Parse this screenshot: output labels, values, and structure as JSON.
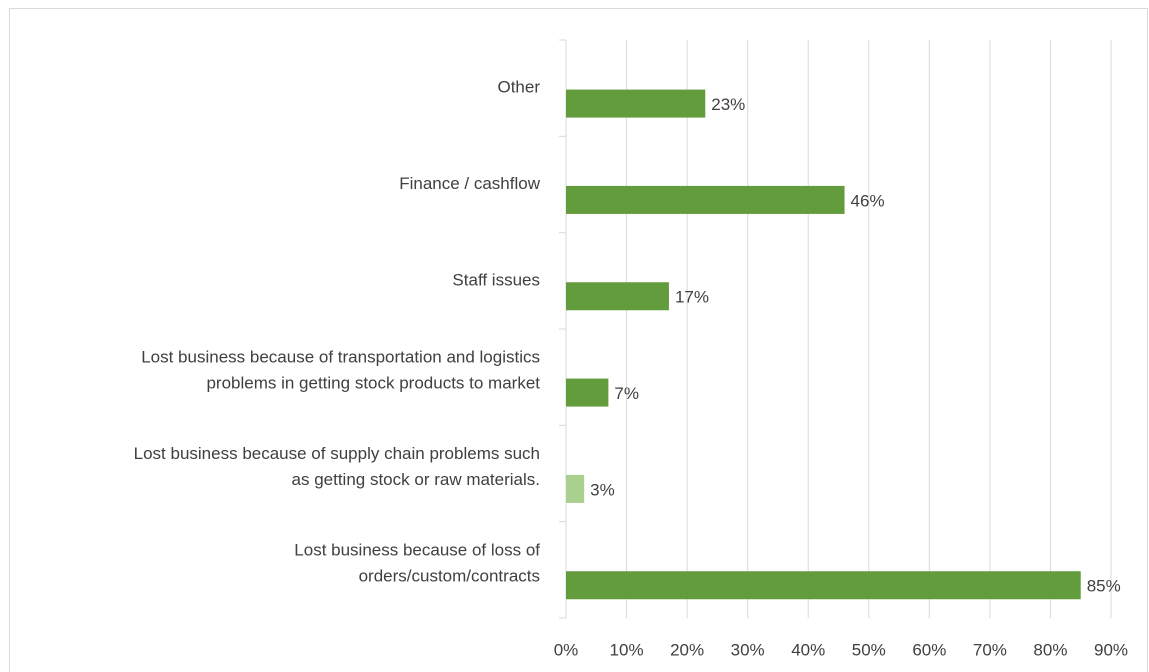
{
  "chart_data": {
    "type": "bar",
    "orientation": "horizontal",
    "categories": [
      [
        "Other"
      ],
      [
        "Finance / cashflow"
      ],
      [
        "Staff issues"
      ],
      [
        "Lost business because of transportation and logistics",
        "problems in getting stock products to market"
      ],
      [
        "Lost business because of supply chain problems such",
        "as getting stock or raw materials."
      ],
      [
        "Lost business because of  loss of",
        "orders/custom/contracts"
      ]
    ],
    "values": [
      23,
      46,
      17,
      7,
      3,
      85
    ],
    "value_labels": [
      "23%",
      "46%",
      "17%",
      "7%",
      "3%",
      "85%"
    ],
    "colors": [
      "#629c3c",
      "#629c3c",
      "#629c3c",
      "#629c3c",
      "#a9d08e",
      "#629c3c"
    ],
    "xlim": [
      0,
      90
    ],
    "xticks": [
      {
        "value": 0,
        "label": "0%"
      },
      {
        "value": 10,
        "label": "10%"
      },
      {
        "value": 20,
        "label": "20%"
      },
      {
        "value": 30,
        "label": "30%"
      },
      {
        "value": 40,
        "label": "40%"
      },
      {
        "value": 50,
        "label": "50%"
      },
      {
        "value": 60,
        "label": "60%"
      },
      {
        "value": 70,
        "label": "70%"
      },
      {
        "value": 80,
        "label": "80%"
      },
      {
        "value": 90,
        "label": "90%"
      }
    ],
    "grid": true
  }
}
